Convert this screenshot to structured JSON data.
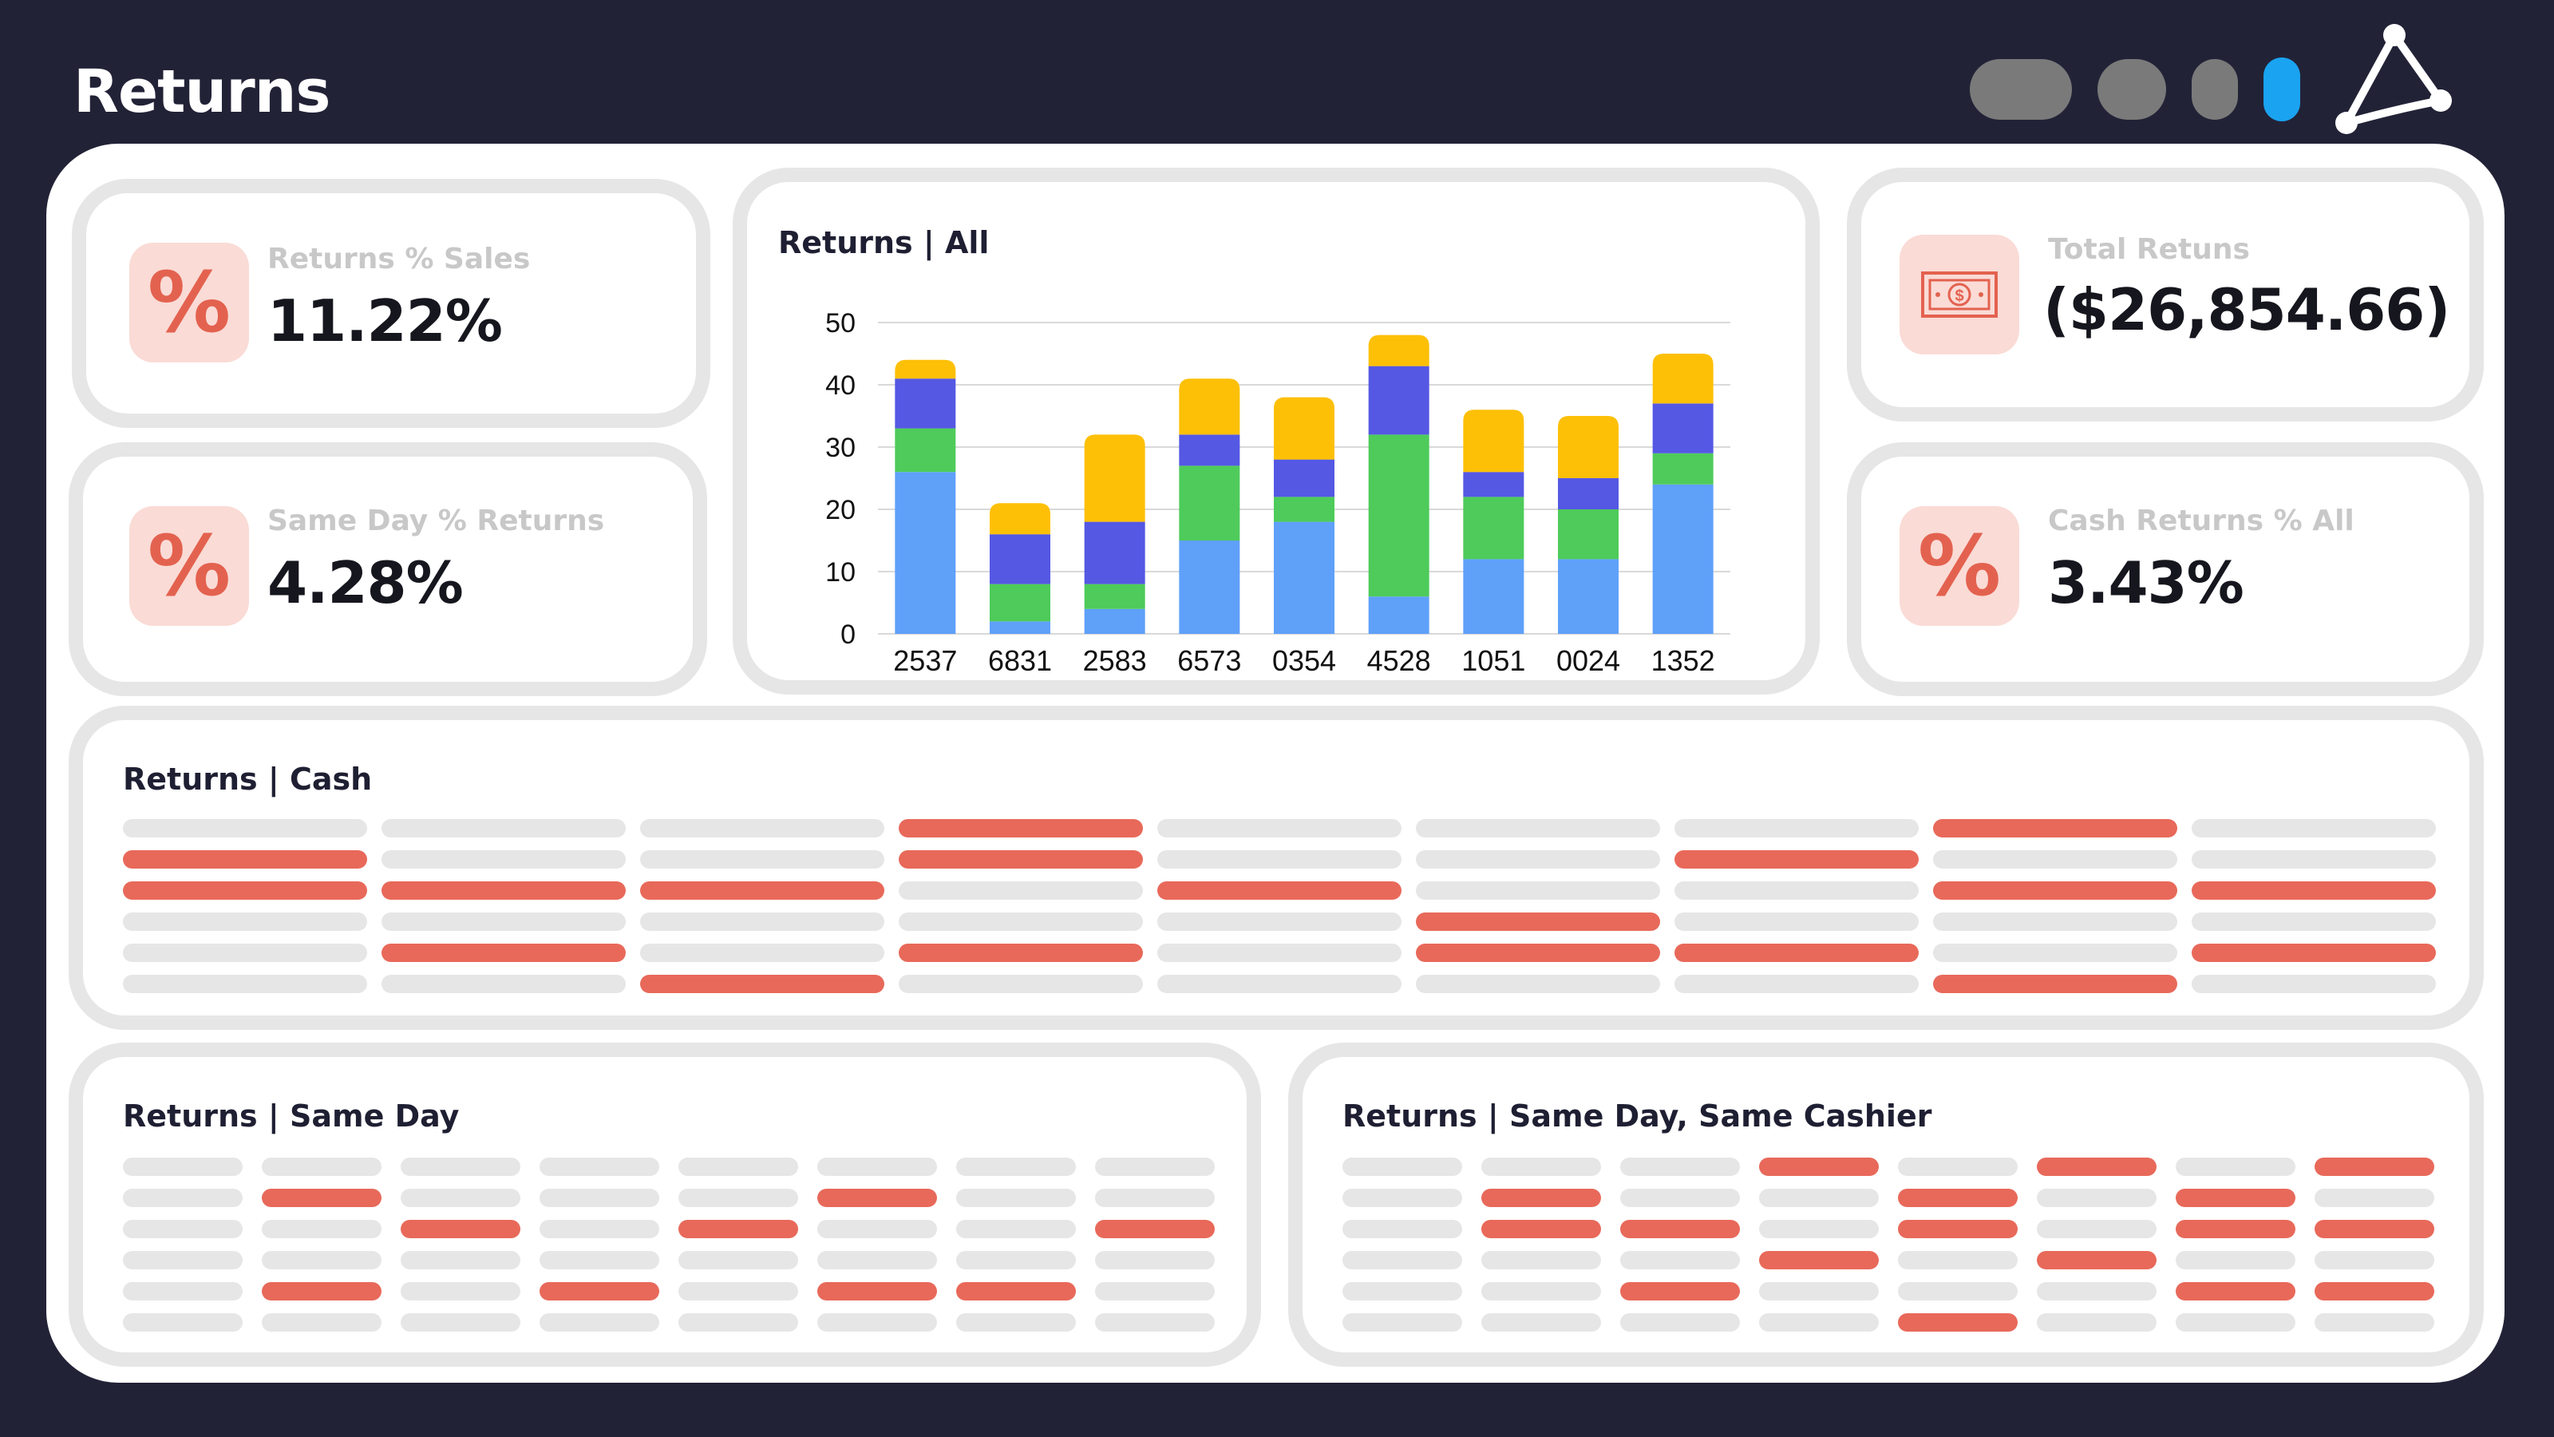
{
  "header": {
    "title": "Returns"
  },
  "colors": {
    "background": "#222237",
    "accent_red": "#e8695a",
    "placeholder_grey": "#e6e6e6",
    "window_control_active": "#1aa3f0",
    "window_control_inactive": "#7a7a7a"
  },
  "kpis": {
    "returns_pct_sales": {
      "label": "Returns % Sales",
      "value": "11.22%",
      "icon": "percent-icon"
    },
    "same_day_pct_returns": {
      "label": "Same Day % Returns",
      "value": "4.28%",
      "icon": "percent-icon"
    },
    "total_returns": {
      "label": "Total Retuns",
      "value": "($26,854.66)",
      "icon": "dollar-bill-icon"
    },
    "cash_returns_pct_all": {
      "label": "Cash Returns % All",
      "value": "3.43%",
      "icon": "percent-icon"
    }
  },
  "panels": {
    "returns_all": {
      "title": "Returns | All"
    },
    "returns_cash": {
      "title": "Returns | Cash"
    },
    "returns_same_day": {
      "title": "Returns | Same Day"
    },
    "returns_same_day_same_cashier": {
      "title": "Returns | Same Day, Same Cashier"
    }
  },
  "chart_data": {
    "type": "bar",
    "stacked": true,
    "title": "Returns | All",
    "categories": [
      "2537",
      "6831",
      "2583",
      "6573",
      "0354",
      "4528",
      "1051",
      "0024",
      "1352"
    ],
    "series": [
      {
        "color": "#5fa0f9",
        "values": [
          26,
          2,
          4,
          15,
          18,
          6,
          12,
          12,
          24
        ]
      },
      {
        "color": "#4ecb5a",
        "values": [
          7,
          6,
          4,
          12,
          4,
          26,
          10,
          8,
          5
        ]
      },
      {
        "color": "#5558e3",
        "values": [
          8,
          8,
          10,
          5,
          6,
          11,
          4,
          5,
          8
        ]
      },
      {
        "color": "#fdc007",
        "values": [
          3,
          5,
          14,
          9,
          10,
          5,
          10,
          10,
          8
        ]
      }
    ],
    "yticks": [
      "0",
      "10",
      "20",
      "30",
      "40",
      "50"
    ],
    "ylim": [
      0,
      50
    ],
    "grid": true,
    "legend": "none"
  },
  "cash_grid": {
    "rows": [
      [
        0,
        0,
        0,
        1,
        0,
        0,
        0,
        1,
        0
      ],
      [
        1,
        0,
        0,
        1,
        0,
        0,
        1,
        0,
        0
      ],
      [
        1,
        1,
        1,
        0,
        1,
        0,
        0,
        1,
        1
      ],
      [
        0,
        0,
        0,
        0,
        0,
        1,
        0,
        0,
        0
      ],
      [
        0,
        1,
        0,
        1,
        0,
        1,
        1,
        0,
        1
      ],
      [
        0,
        0,
        1,
        0,
        0,
        0,
        0,
        1,
        0
      ]
    ]
  },
  "same_day_grid": {
    "rows": [
      [
        0,
        0,
        0,
        0,
        0,
        0,
        0,
        0
      ],
      [
        0,
        1,
        0,
        0,
        0,
        1,
        0,
        0
      ],
      [
        0,
        0,
        1,
        0,
        1,
        0,
        0,
        1
      ],
      [
        0,
        0,
        0,
        0,
        0,
        0,
        0,
        0
      ],
      [
        0,
        1,
        0,
        1,
        0,
        1,
        1,
        0
      ],
      [
        0,
        0,
        0,
        0,
        0,
        0,
        0,
        0
      ]
    ]
  },
  "same_cashier_grid": {
    "rows": [
      [
        0,
        0,
        0,
        1,
        0,
        1,
        0,
        1
      ],
      [
        0,
        1,
        0,
        0,
        1,
        0,
        1,
        0
      ],
      [
        0,
        1,
        1,
        0,
        1,
        0,
        1,
        1
      ],
      [
        0,
        0,
        0,
        1,
        0,
        1,
        0,
        0
      ],
      [
        0,
        0,
        1,
        0,
        0,
        0,
        1,
        1
      ],
      [
        0,
        0,
        0,
        0,
        1,
        0,
        0,
        0
      ]
    ]
  }
}
